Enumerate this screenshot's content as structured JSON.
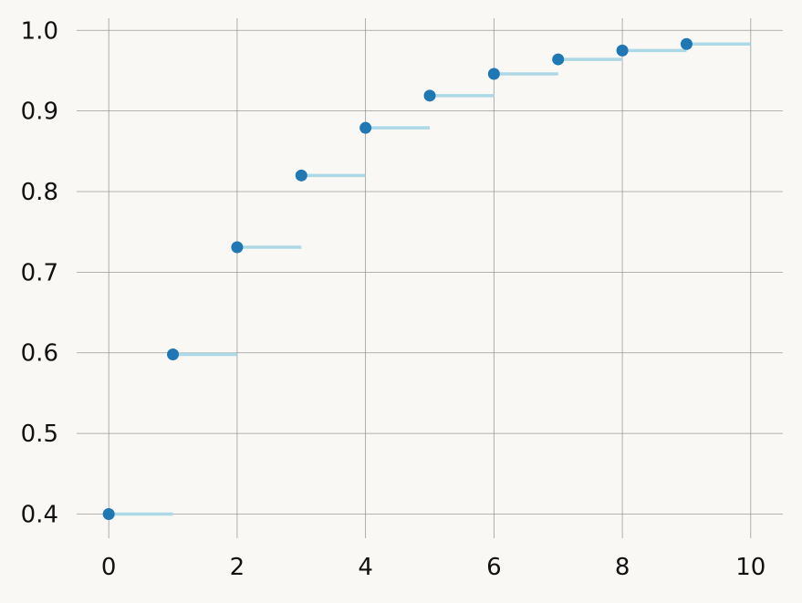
{
  "chart_data": {
    "type": "scatter",
    "title": "",
    "xlabel": "",
    "ylabel": "",
    "xlim": [
      -0.5,
      10.5
    ],
    "ylim": [
      0.37,
      1.015
    ],
    "x_ticks": [
      0,
      2,
      4,
      6,
      8,
      10
    ],
    "y_ticks": [
      0.4,
      0.5,
      0.6,
      0.7,
      0.8,
      0.9,
      1.0
    ],
    "x_tick_labels": [
      "0",
      "2",
      "4",
      "6",
      "8",
      "10"
    ],
    "y_tick_labels": [
      "0.4",
      "0.5",
      "0.6",
      "0.7",
      "0.8",
      "0.9",
      "1.0"
    ],
    "grid": true,
    "series": [
      {
        "style": "points",
        "x": [
          0,
          1,
          2,
          3,
          4,
          5,
          6,
          7,
          8,
          9
        ],
        "y": [
          0.4,
          0.598,
          0.731,
          0.82,
          0.879,
          0.919,
          0.946,
          0.964,
          0.975,
          0.983
        ]
      },
      {
        "style": "horizontal-steps",
        "x_start": [
          0,
          1,
          2,
          3,
          4,
          5,
          6,
          7,
          8,
          9
        ],
        "x_end": [
          1,
          2,
          3,
          4,
          5,
          6,
          7,
          8,
          9,
          10
        ],
        "y": [
          0.4,
          0.598,
          0.731,
          0.82,
          0.879,
          0.919,
          0.946,
          0.964,
          0.975,
          0.983
        ]
      }
    ],
    "colors": {
      "background": "#f9f8f5",
      "grid": "#8c8c8c",
      "points": "#1f77b4",
      "steps": "#add8e6",
      "text": "#111111"
    }
  }
}
